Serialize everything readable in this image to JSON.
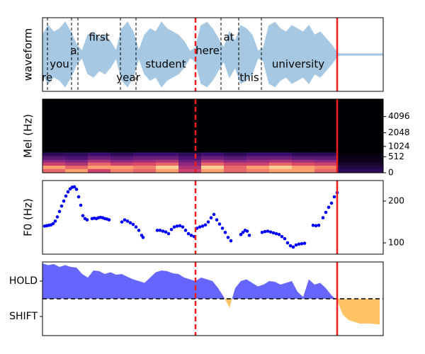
{
  "chart_data": [
    {
      "type": "waveform",
      "ylabel": "waveform",
      "xlim": [
        0,
        481
      ],
      "ylim": [
        -1.15,
        1.15
      ],
      "color": "#a6c8e2",
      "x": [
        0,
        8,
        16,
        24,
        32,
        40,
        48,
        56,
        64,
        72,
        80,
        88,
        96,
        104,
        112,
        120,
        128,
        136,
        144,
        152,
        160,
        168,
        176,
        184,
        192,
        200,
        208,
        216,
        224,
        232,
        240,
        248,
        256,
        264,
        272,
        280,
        288,
        296,
        304,
        312,
        320,
        328,
        336,
        344,
        352,
        360,
        368,
        376,
        384,
        392,
        400,
        408,
        416,
        420,
        481
      ],
      "values": [
        0.6,
        0.9,
        0.7,
        0.8,
        1.0,
        0.7,
        0.3,
        0.1,
        0.6,
        0.7,
        0.5,
        0.6,
        0.4,
        0.1,
        0.8,
        1.0,
        0.7,
        0.1,
        0.6,
        0.8,
        0.7,
        1.0,
        0.8,
        0.7,
        0.6,
        0.4,
        0.1,
        0.2,
        0.9,
        1.0,
        0.8,
        0.5,
        0.2,
        0.7,
        0.4,
        0.9,
        0.8,
        0.6,
        0.1,
        0.2,
        0.9,
        1.0,
        0.8,
        0.7,
        0.9,
        0.8,
        0.7,
        0.9,
        0.6,
        0.7,
        0.5,
        0.3,
        0.05,
        0.02,
        0.02
      ],
      "words": [
        "are",
        "you",
        "a",
        "first",
        "year",
        "student",
        "here",
        "at",
        "this",
        "university"
      ],
      "word_x": [
        2,
        24,
        44,
        80,
        121,
        174,
        233,
        263,
        292,
        361
      ],
      "word_boundaries": [
        7,
        41,
        50,
        110,
        132,
        252,
        277,
        309
      ],
      "vlines": [
        {
          "x": 216,
          "linestyle": "dashed",
          "color": "#ee1c1c"
        },
        {
          "x": 416,
          "linestyle": "solid",
          "color": "#ee1c1c"
        }
      ]
    },
    {
      "type": "heatmap",
      "ylabel": "Mel (Hz)",
      "xlim": [
        0,
        481
      ],
      "ylim": [
        0,
        8000
      ],
      "yscale": "mel",
      "yticks": [
        0,
        512,
        1024,
        2048,
        4096
      ],
      "ytick_side": "right",
      "colormap": "magma",
      "x_edges": [
        0,
        32,
        64,
        96,
        128,
        160,
        192,
        224,
        256,
        288,
        320,
        352,
        384,
        416,
        481
      ],
      "y_edges": [
        0,
        100,
        200,
        300,
        400,
        550,
        700
      ],
      "values": [
        [
          0.8,
          0.9,
          0.7,
          0.85,
          0.8,
          0.9,
          0.7,
          0.9,
          0.8,
          0.85,
          0.9,
          0.9,
          0.8,
          0.2
        ],
        [
          0.9,
          0.8,
          0.9,
          0.9,
          0.85,
          0.95,
          0.6,
          0.95,
          0.8,
          0.9,
          0.95,
          0.9,
          0.85,
          0.15
        ],
        [
          0.7,
          0.6,
          0.8,
          0.7,
          0.75,
          0.8,
          0.5,
          0.8,
          0.7,
          0.7,
          0.8,
          0.75,
          0.7,
          0.1
        ],
        [
          0.5,
          0.45,
          0.6,
          0.5,
          0.55,
          0.6,
          0.4,
          0.6,
          0.5,
          0.55,
          0.6,
          0.55,
          0.5,
          0.05
        ],
        [
          0.35,
          0.3,
          0.4,
          0.35,
          0.4,
          0.4,
          0.3,
          0.4,
          0.35,
          0.4,
          0.4,
          0.35,
          0.35,
          0.05
        ],
        [
          0.2,
          0.2,
          0.25,
          0.2,
          0.25,
          0.25,
          0.2,
          0.25,
          0.2,
          0.25,
          0.25,
          0.2,
          0.2,
          0.02
        ]
      ],
      "vlines": [
        {
          "x": 216,
          "linestyle": "dashed",
          "color": "#ee1c1c"
        },
        {
          "x": 416,
          "linestyle": "solid",
          "color": "#ee1c1c"
        }
      ]
    },
    {
      "type": "scatter",
      "ylabel": "F0 (Hz)",
      "xlim": [
        0,
        481
      ],
      "ylim": [
        73,
        249
      ],
      "yticks": [
        100,
        200
      ],
      "ytick_side": "right",
      "color": "#0000ff",
      "x": [
        3,
        6,
        9,
        12,
        15,
        18,
        21,
        24,
        27,
        30,
        33,
        36,
        39,
        42,
        45,
        48,
        51,
        54,
        57,
        60,
        63,
        70,
        73,
        76,
        79,
        82,
        85,
        88,
        91,
        94,
        112,
        116,
        120,
        124,
        128,
        132,
        136,
        140,
        142,
        162,
        166,
        170,
        174,
        178,
        182,
        186,
        190,
        194,
        198,
        202,
        206,
        210,
        214,
        218,
        222,
        226,
        230,
        234,
        238,
        242,
        246,
        250,
        254,
        258,
        262,
        266,
        280,
        283,
        286,
        289,
        292,
        310,
        314,
        318,
        322,
        326,
        330,
        334,
        338,
        342,
        346,
        350,
        354,
        358,
        362,
        366,
        370,
        382,
        386,
        390,
        396,
        400,
        404,
        408,
        412,
        416
      ],
      "values": [
        140,
        141,
        142,
        143,
        146,
        152,
        162,
        175,
        188,
        200,
        212,
        222,
        229,
        233,
        234,
        228,
        210,
        190,
        165,
        158,
        155,
        158,
        159,
        158,
        160,
        161,
        160,
        158,
        157,
        155,
        150,
        155,
        152,
        148,
        144,
        138,
        130,
        118,
        113,
        130,
        130,
        128,
        126,
        122,
        132,
        138,
        140,
        141,
        138,
        130,
        122,
        118,
        115,
        135,
        138,
        140,
        143,
        150,
        160,
        168,
        155,
        145,
        135,
        125,
        113,
        105,
        120,
        125,
        130,
        128,
        118,
        125,
        127,
        128,
        126,
        124,
        122,
        120,
        115,
        110,
        100,
        93,
        90,
        95,
        97,
        98,
        99,
        142,
        141,
        142,
        160,
        173,
        185,
        195,
        210,
        220
      ],
      "vlines": [
        {
          "x": 216,
          "linestyle": "dashed",
          "color": "#ee1c1c"
        },
        {
          "x": 416,
          "linestyle": "solid",
          "color": "#ee1c1c"
        }
      ]
    },
    {
      "type": "area",
      "xlim": [
        0,
        481
      ],
      "ylim": [
        -1.04,
        1.04
      ],
      "yticks": [
        {
          "value": 0.5,
          "label": "HOLD"
        },
        {
          "value": -0.5,
          "label": "SHIFT"
        }
      ],
      "ytick_side": "left",
      "color": "#6666ff",
      "negative_color": "#ffc466",
      "hline": 0,
      "x": [
        0,
        8,
        16,
        24,
        32,
        40,
        48,
        56,
        64,
        72,
        80,
        88,
        96,
        104,
        112,
        120,
        128,
        136,
        144,
        152,
        160,
        168,
        176,
        184,
        192,
        200,
        208,
        216,
        224,
        232,
        240,
        248,
        256,
        264,
        272,
        280,
        288,
        296,
        304,
        312,
        320,
        328,
        336,
        344,
        352,
        360,
        368,
        376,
        384,
        392,
        400,
        408,
        416,
        424,
        432,
        440,
        448,
        456,
        464,
        472,
        476
      ],
      "values": [
        1.0,
        0.95,
        0.98,
        0.9,
        0.95,
        0.9,
        0.88,
        0.7,
        0.6,
        0.8,
        0.78,
        0.7,
        0.75,
        0.68,
        0.7,
        0.62,
        0.55,
        0.5,
        0.45,
        0.6,
        0.75,
        0.8,
        0.78,
        0.72,
        0.7,
        0.6,
        0.55,
        0.5,
        0.6,
        0.55,
        0.5,
        0.3,
        0.05,
        -0.25,
        0.3,
        0.5,
        0.55,
        0.45,
        0.35,
        0.4,
        0.5,
        0.48,
        0.4,
        0.45,
        0.5,
        0.2,
        0.05,
        0.55,
        0.4,
        0.45,
        0.3,
        0.1,
        -0.05,
        -0.45,
        -0.6,
        -0.65,
        -0.7,
        -0.7,
        -0.7,
        -0.72,
        -0.72
      ],
      "vlines": [
        {
          "x": 216,
          "linestyle": "dashed",
          "color": "#ee1c1c"
        },
        {
          "x": 416,
          "linestyle": "solid",
          "color": "#ee1c1c"
        }
      ]
    }
  ]
}
